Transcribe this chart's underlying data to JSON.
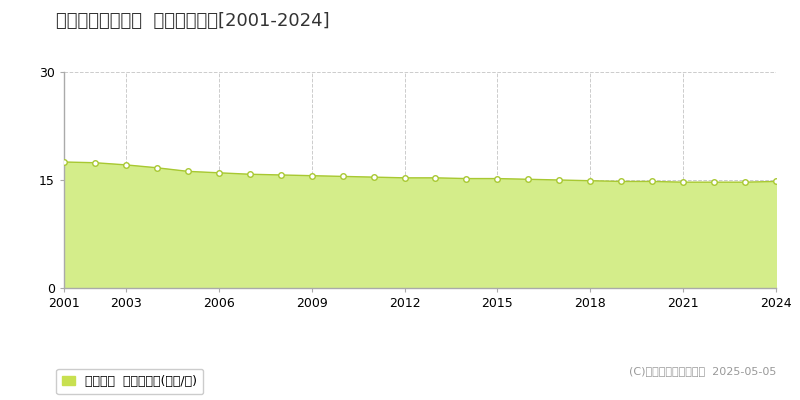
{
  "title": "知多郡武豊町多賀  基準地価推移[2001-2024]",
  "years": [
    2001,
    2002,
    2003,
    2004,
    2005,
    2006,
    2007,
    2008,
    2009,
    2010,
    2011,
    2012,
    2013,
    2014,
    2015,
    2016,
    2017,
    2018,
    2019,
    2020,
    2021,
    2022,
    2023,
    2024
  ],
  "values": [
    17.5,
    17.4,
    17.1,
    16.7,
    16.2,
    16.0,
    15.8,
    15.7,
    15.6,
    15.5,
    15.4,
    15.3,
    15.3,
    15.2,
    15.2,
    15.1,
    15.0,
    14.9,
    14.8,
    14.8,
    14.7,
    14.7,
    14.7,
    14.8
  ],
  "ylim": [
    0,
    30
  ],
  "yticks": [
    0,
    15,
    30
  ],
  "xticks": [
    2001,
    2003,
    2006,
    2009,
    2012,
    2015,
    2018,
    2021,
    2024
  ],
  "fill_color": "#d4ed8a",
  "line_color": "#a8c832",
  "marker_color": "#ffffff",
  "marker_edge_color": "#a8c832",
  "grid_color": "#cccccc",
  "background_color": "#ffffff",
  "legend_label": "基準地価  平均坪単価(万円/坪)",
  "legend_marker_color": "#c8e050",
  "copyright_text": "(C)土地価格ドットコム  2025-05-05",
  "title_fontsize": 13,
  "axis_fontsize": 9,
  "legend_fontsize": 9,
  "spine_color": "#aaaaaa"
}
